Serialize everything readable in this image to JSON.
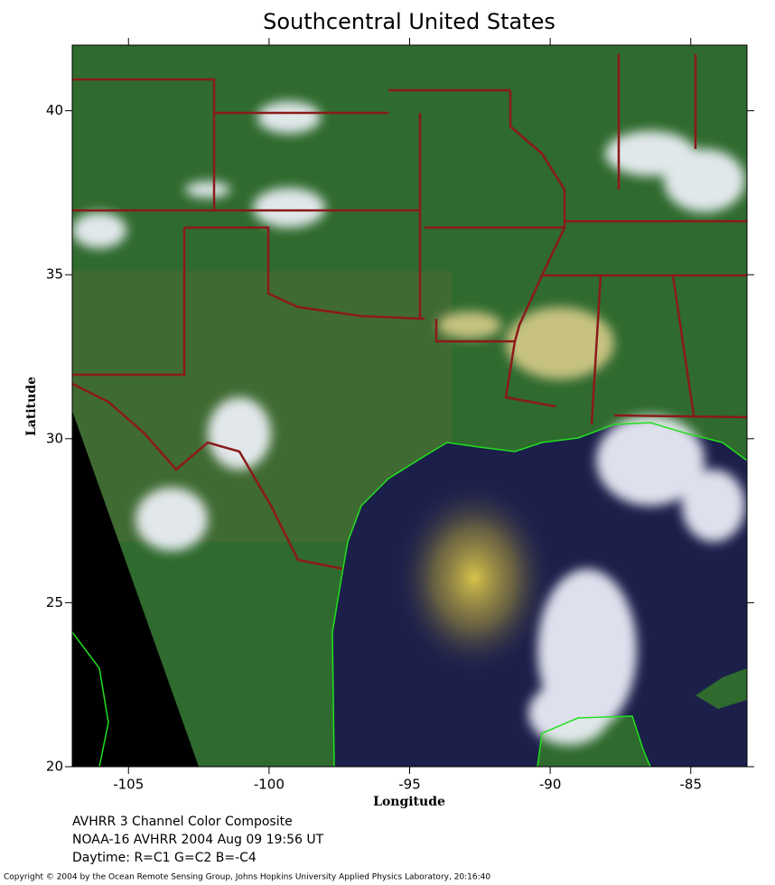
{
  "title": "Southcentral United States",
  "x_axis": {
    "label": "Longitude",
    "lim": [
      -107,
      -83
    ],
    "ticks": [
      -105,
      -100,
      -95,
      -90,
      -85
    ]
  },
  "y_axis": {
    "label": "Latitude",
    "lim": [
      20,
      42
    ],
    "ticks": [
      20,
      25,
      30,
      35,
      40
    ]
  },
  "caption": [
    "AVHRR 3 Channel Color Composite",
    "NOAA-16 AVHRR 2004 Aug 09 19:56 UT",
    "Daytime: R=C1 G=C2 B=-C4"
  ],
  "copyright": "Copyright © 2004 by the Ocean Remote Sensing Group, Johns Hopkins University Applied Physics Laboratory, 20:16:40"
}
